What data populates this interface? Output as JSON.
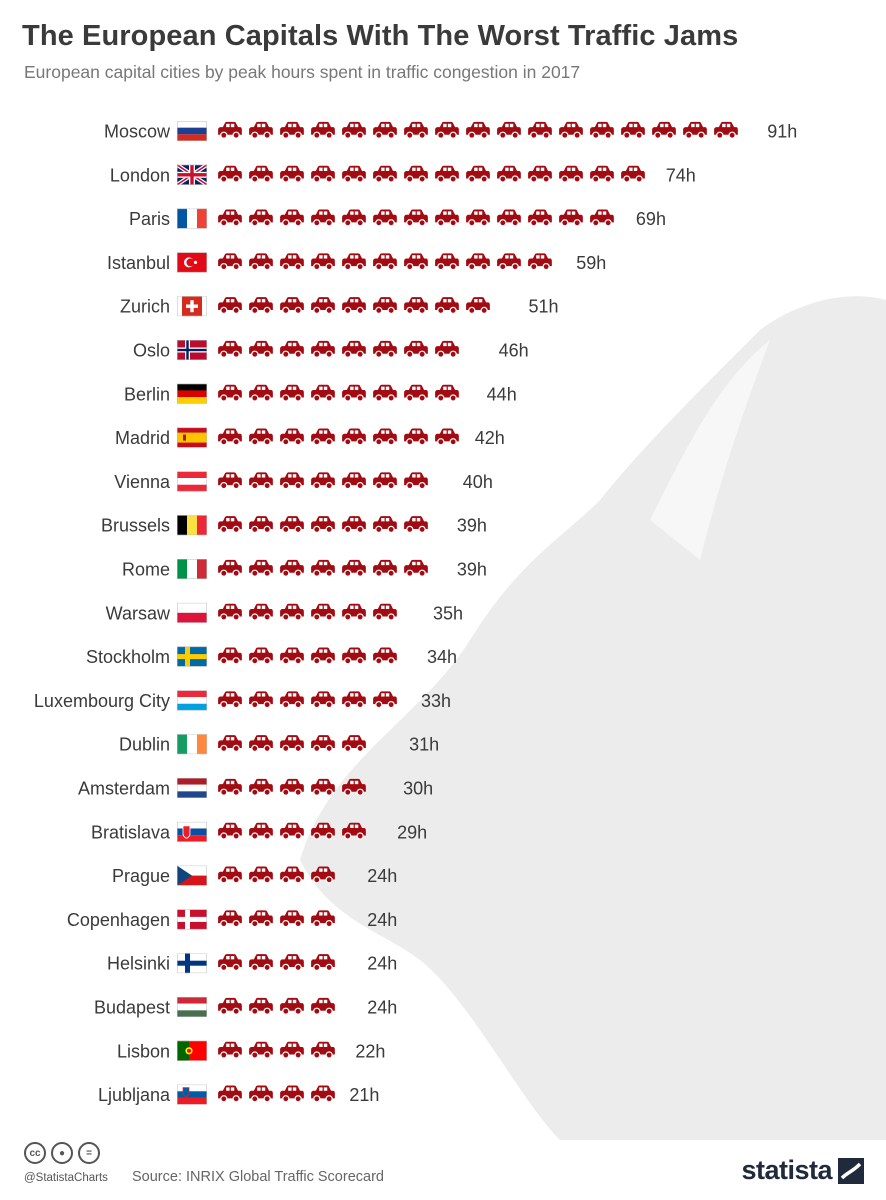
{
  "header": {
    "title": "The European Capitals With The Worst Traffic Jams",
    "subtitle": "European capital cities by peak hours spent in traffic congestion in 2017"
  },
  "footer": {
    "handle": "@StatistaCharts",
    "source": "Source: INRIX Global Traffic Scorecard",
    "logo": "statista",
    "license_icons": [
      "cc-icon",
      "by-icon",
      "nd-icon"
    ]
  },
  "colors": {
    "car": "#a30b13",
    "text": "#3a3a3a",
    "map": "#ececec"
  },
  "chart_data": {
    "type": "bar",
    "unit_icon": "car-icon",
    "categories": [
      "Moscow",
      "London",
      "Paris",
      "Istanbul",
      "Zurich",
      "Oslo",
      "Berlin",
      "Madrid",
      "Vienna",
      "Brussels",
      "Rome",
      "Warsaw",
      "Stockholm",
      "Luxembourg City",
      "Dublin",
      "Amsterdam",
      "Bratislava",
      "Prague",
      "Copenhagen",
      "Helsinki",
      "Budapest",
      "Lisbon",
      "Ljubljana"
    ],
    "values": [
      91,
      74,
      69,
      59,
      51,
      46,
      44,
      42,
      40,
      39,
      39,
      35,
      34,
      33,
      31,
      30,
      29,
      24,
      24,
      24,
      24,
      22,
      21
    ],
    "value_labels": [
      "91h",
      "74h",
      "69h",
      "59h",
      "51h",
      "46h",
      "44h",
      "42h",
      "40h",
      "39h",
      "39h",
      "35h",
      "34h",
      "33h",
      "31h",
      "30h",
      "29h",
      "24h",
      "24h",
      "24h",
      "24h",
      "22h",
      "21h"
    ],
    "flags": [
      "russia",
      "uk",
      "france",
      "turkey",
      "switzerland",
      "norway",
      "germany",
      "spain",
      "austria",
      "belgium",
      "italy",
      "poland",
      "sweden",
      "luxembourg",
      "ireland",
      "netherlands",
      "slovakia",
      "czechia",
      "denmark",
      "finland",
      "hungary",
      "portugal",
      "slovenia"
    ]
  }
}
